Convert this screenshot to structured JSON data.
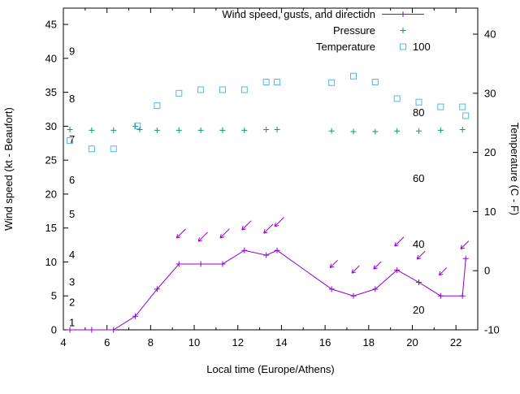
{
  "chart_data": {
    "type": "line",
    "title": "",
    "xlabel": "Local time (Europe/Athens)",
    "ylabel_left": "Wind speed (kt - Beaufort)",
    "ylabel_right": "Temperature (C - F)",
    "xlim": [
      4,
      23
    ],
    "x_major_ticks": [
      4,
      6,
      8,
      10,
      12,
      14,
      16,
      18,
      20,
      22
    ],
    "x_minor_step": 1,
    "left_lim": [
      0,
      47.4
    ],
    "left_ticks": [
      0,
      5,
      10,
      15,
      20,
      25,
      30,
      35,
      40,
      45
    ],
    "right_lim": [
      -10,
      44.4
    ],
    "right_ticks": [
      -10,
      0,
      10,
      20,
      30,
      40
    ],
    "grid": false,
    "legend_position": "top-right-inside",
    "beaufort_scale_labels": [
      {
        "label": "1",
        "kt": 1
      },
      {
        "label": "2",
        "kt": 4
      },
      {
        "label": "3",
        "kt": 7
      },
      {
        "label": "4",
        "kt": 11
      },
      {
        "label": "5",
        "kt": 17
      },
      {
        "label": "6",
        "kt": 22
      },
      {
        "label": "7",
        "kt": 28
      },
      {
        "label": "8",
        "kt": 34
      },
      {
        "label": "9",
        "kt": 41
      }
    ],
    "fahrenheit_scale_labels": [
      {
        "label": "20",
        "c": -6.67
      },
      {
        "label": "40",
        "c": 4.44
      },
      {
        "label": "60",
        "c": 15.56
      },
      {
        "label": "80",
        "c": 26.67
      },
      {
        "label": "100",
        "c": 37.78
      }
    ],
    "series": [
      {
        "name": "Wind speed, gusts, and direction",
        "color": "#9400d3",
        "marker": "plus",
        "line": true,
        "axis": "left",
        "x": [
          4.3,
          5.3,
          6.3,
          7.3,
          8.3,
          9.3,
          10.3,
          11.3,
          12.3,
          13.3,
          13.8,
          16.3,
          17.3,
          18.3,
          19.3,
          20.3,
          21.3,
          22.3,
          22.45
        ],
        "y": [
          0,
          0,
          0,
          2,
          6,
          9.7,
          9.7,
          9.7,
          11.7,
          11,
          11.7,
          6,
          5,
          6,
          8.8,
          7,
          5,
          5,
          10.5
        ]
      },
      {
        "name": "Pressure",
        "color": "#009e73",
        "marker": "plus",
        "line": false,
        "axis": "left",
        "x": [
          4.3,
          5.3,
          6.3,
          7.3,
          7.5,
          8.3,
          9.3,
          10.3,
          11.3,
          12.3,
          13.3,
          13.8,
          16.3,
          17.3,
          18.3,
          19.3,
          20.3,
          21.3,
          22.3
        ],
        "y": [
          29.5,
          29.4,
          29.4,
          30.0,
          29.5,
          29.4,
          29.4,
          29.4,
          29.4,
          29.4,
          29.5,
          29.5,
          29.3,
          29.2,
          29.2,
          29.3,
          29.3,
          29.4,
          29.5
        ]
      },
      {
        "name": "Temperature",
        "color": "#56b4e9",
        "marker": "square",
        "line": false,
        "axis": "right",
        "x": [
          4.3,
          5.3,
          6.3,
          7.4,
          8.3,
          9.3,
          10.3,
          11.3,
          12.3,
          13.3,
          13.8,
          16.3,
          17.3,
          18.3,
          19.3,
          20.3,
          21.3,
          22.3,
          22.45
        ],
        "y": [
          22,
          20.6,
          20.6,
          24.5,
          27.9,
          30,
          30.6,
          30.6,
          30.6,
          31.9,
          31.9,
          31.8,
          32.9,
          31.9,
          29.1,
          28.5,
          27.7,
          27.7,
          26.2
        ]
      }
    ],
    "wind_arrows": {
      "color": "#9400d3",
      "points": [
        {
          "x": 9.4,
          "kt": 14.2,
          "angle": 135,
          "len": 16
        },
        {
          "x": 10.4,
          "kt": 13.7,
          "angle": 135,
          "len": 16
        },
        {
          "x": 11.4,
          "kt": 14.2,
          "angle": 135,
          "len": 16
        },
        {
          "x": 12.4,
          "kt": 15.4,
          "angle": 135,
          "len": 16
        },
        {
          "x": 13.4,
          "kt": 14.9,
          "angle": 135,
          "len": 16
        },
        {
          "x": 13.9,
          "kt": 15.9,
          "angle": 135,
          "len": 16
        },
        {
          "x": 16.4,
          "kt": 9.7,
          "angle": 135,
          "len": 13
        },
        {
          "x": 17.4,
          "kt": 8.9,
          "angle": 135,
          "len": 13
        },
        {
          "x": 18.4,
          "kt": 9.5,
          "angle": 135,
          "len": 13
        },
        {
          "x": 19.4,
          "kt": 13.0,
          "angle": 135,
          "len": 16
        },
        {
          "x": 20.4,
          "kt": 11.0,
          "angle": 135,
          "len": 14
        },
        {
          "x": 21.4,
          "kt": 8.6,
          "angle": 135,
          "len": 13
        },
        {
          "x": 22.4,
          "kt": 12.5,
          "angle": 135,
          "len": 14
        }
      ]
    },
    "legend": {
      "items": [
        {
          "label": "Wind speed, gusts, and direction",
          "marker": "line-plus",
          "color": "#9400d3"
        },
        {
          "label": "Pressure",
          "marker": "plus",
          "color": "#009e73"
        },
        {
          "label": "Temperature",
          "marker": "square",
          "color": "#56b4e9"
        }
      ]
    },
    "colors": {
      "axis": "#000000",
      "background": "#ffffff"
    }
  }
}
